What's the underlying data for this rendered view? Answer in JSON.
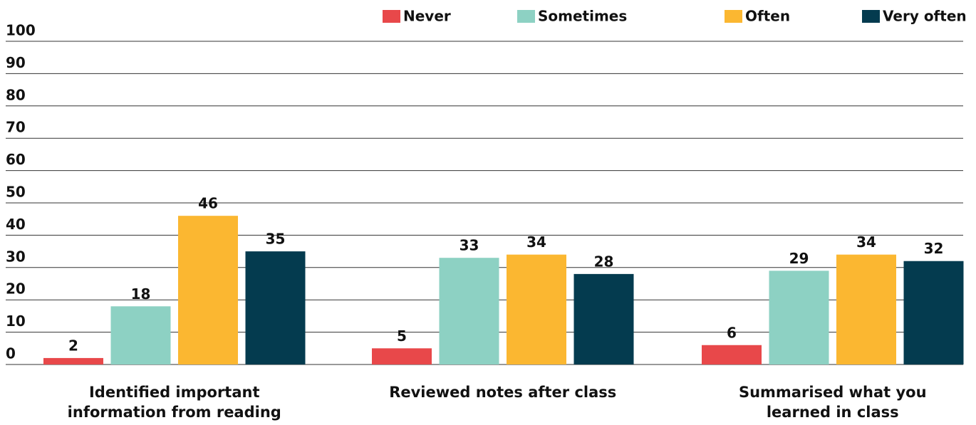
{
  "chart_data": {
    "type": "bar",
    "categories": [
      "Identified important information from reading",
      "Reviewed notes after class",
      "Summarised what you learned in class"
    ],
    "series": [
      {
        "name": "Never",
        "color": "#e8484a",
        "values": [
          2,
          5,
          6
        ]
      },
      {
        "name": "Sometimes",
        "color": "#8dd1c3",
        "values": [
          18,
          33,
          29
        ]
      },
      {
        "name": "Often",
        "color": "#fbb731",
        "values": [
          46,
          34,
          34
        ]
      },
      {
        "name": "Very often",
        "color": "#043b4f",
        "values": [
          35,
          28,
          32
        ]
      }
    ],
    "ylim": [
      0,
      100
    ],
    "yticks": [
      0,
      10,
      20,
      30,
      40,
      50,
      60,
      70,
      80,
      90,
      100
    ],
    "grid": true
  }
}
